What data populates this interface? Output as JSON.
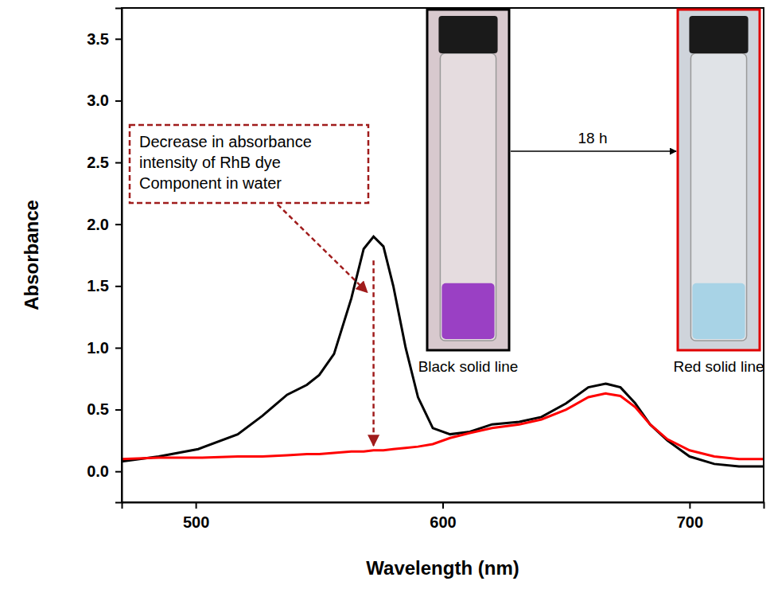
{
  "chart_data": {
    "type": "line",
    "x_label": "Wavelength (nm)",
    "y_label": "Absorbance",
    "x": [
      470,
      485,
      501,
      517,
      527,
      537,
      545,
      550,
      556,
      563,
      568,
      572,
      576,
      580,
      585,
      590,
      596,
      603,
      611,
      620,
      631,
      640,
      650,
      659,
      666,
      672,
      678,
      684,
      691,
      700,
      710,
      720,
      730
    ],
    "series": [
      {
        "color": "#000000",
        "line_style": "solid",
        "values": [
          0.08,
          0.12,
          0.18,
          0.3,
          0.45,
          0.62,
          0.7,
          0.78,
          0.95,
          1.4,
          1.8,
          1.9,
          1.82,
          1.5,
          1.0,
          0.6,
          0.35,
          0.3,
          0.32,
          0.38,
          0.4,
          0.44,
          0.55,
          0.68,
          0.71,
          0.68,
          0.55,
          0.38,
          0.25,
          0.12,
          0.06,
          0.04,
          0.04
        ]
      },
      {
        "color": "#ff0000",
        "line_style": "solid",
        "values": [
          0.1,
          0.11,
          0.11,
          0.12,
          0.12,
          0.13,
          0.14,
          0.14,
          0.15,
          0.16,
          0.16,
          0.17,
          0.17,
          0.18,
          0.19,
          0.2,
          0.22,
          0.27,
          0.31,
          0.35,
          0.38,
          0.42,
          0.5,
          0.6,
          0.63,
          0.61,
          0.52,
          0.38,
          0.26,
          0.17,
          0.12,
          0.1,
          0.1
        ]
      }
    ],
    "xlim": [
      470,
      730
    ],
    "xticks": [
      500,
      600,
      700
    ],
    "ylim": [
      -0.25,
      3.75
    ],
    "yticks": [
      {
        "value": 0,
        "label": "0.0"
      },
      {
        "value": 0.5,
        "label": "0.5"
      },
      {
        "value": 1,
        "label": "1.0"
      },
      {
        "value": 1.5,
        "label": "1.5"
      },
      {
        "value": 2,
        "label": "2.0"
      },
      {
        "value": 2.5,
        "label": "2.5"
      },
      {
        "value": 3,
        "label": "3.0"
      },
      {
        "value": 3.5,
        "label": "3.5"
      }
    ],
    "grid": false,
    "annotation": [
      "Decrease in absorbance",
      "intensity of RhB dye",
      "Component in water"
    ],
    "annotation_x": 572,
    "inset_labels": [
      "Black solid line",
      "Red solid line"
    ],
    "inset_time": "18 h"
  }
}
